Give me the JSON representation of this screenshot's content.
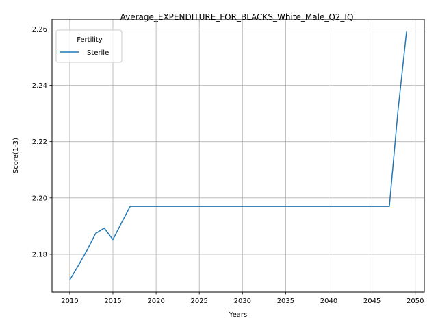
{
  "chart_data": {
    "type": "line",
    "title": "Average_EXPENDITURE_FOR_BLACKS_White_Male_Q2_IQ",
    "xlabel": "Years",
    "ylabel": "Score(1-3)",
    "xlim": [
      2007.95,
      2051.05
    ],
    "ylim": [
      2.1666,
      2.2635
    ],
    "xticks": [
      2010,
      2015,
      2020,
      2025,
      2030,
      2035,
      2040,
      2045,
      2050
    ],
    "yticks": [
      2.18,
      2.2,
      2.22,
      2.24,
      2.26
    ],
    "ytick_labels": [
      "2.18",
      "2.20",
      "2.22",
      "2.24",
      "2.26"
    ],
    "grid": true,
    "legend": {
      "title": "Fertility",
      "placement": "top-left"
    },
    "series": [
      {
        "name": "Sterile",
        "color": "#1f77b4",
        "x": [
          2010,
          2011,
          2012,
          2013,
          2014,
          2015,
          2016,
          2017,
          2018,
          2019,
          2020,
          2021,
          2022,
          2023,
          2024,
          2025,
          2026,
          2027,
          2028,
          2029,
          2030,
          2031,
          2032,
          2033,
          2034,
          2035,
          2036,
          2037,
          2038,
          2039,
          2040,
          2041,
          2042,
          2043,
          2044,
          2045,
          2046,
          2047,
          2048,
          2049
        ],
        "y": [
          2.1709,
          2.176,
          2.1814,
          2.1874,
          2.1893,
          2.1852,
          2.1912,
          2.197,
          2.197,
          2.197,
          2.197,
          2.197,
          2.197,
          2.197,
          2.197,
          2.197,
          2.197,
          2.197,
          2.197,
          2.197,
          2.197,
          2.197,
          2.197,
          2.197,
          2.197,
          2.197,
          2.197,
          2.197,
          2.197,
          2.197,
          2.197,
          2.197,
          2.197,
          2.197,
          2.197,
          2.197,
          2.197,
          2.197,
          2.231,
          2.2593
        ]
      }
    ]
  }
}
